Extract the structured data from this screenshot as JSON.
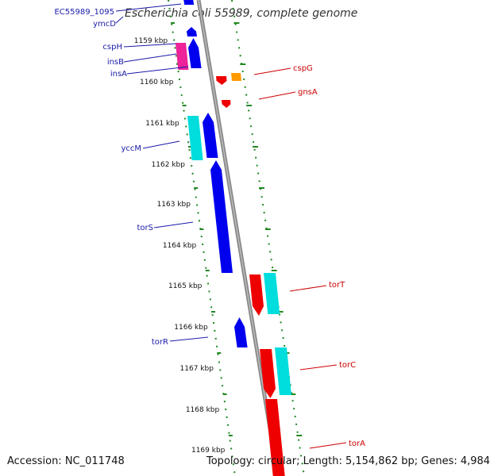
{
  "title": "Escherichia coli 55989, complete genome",
  "footer": {
    "accession": "Accession: NC_011748",
    "topology": "Topology: circular; Length: 5,154,862 bp; Genes: 4,984"
  },
  "colors": {
    "forward_gene": "#0000ee",
    "reverse_gene": "#ee0000",
    "forward_cds_alt": "#00dddd",
    "pink_gene": "#ee2299",
    "orange_gene": "#ff9900",
    "backbone": "#888888",
    "ruler": "#228822",
    "forward_label": "#1a1aaa",
    "reverse_label": "#cc0000"
  },
  "kbp_labels": [
    "1159 kbp",
    "1160 kbp",
    "1161 kbp",
    "1162 kbp",
    "1163 kbp",
    "1164 kbp",
    "1165 kbp",
    "1166 kbp",
    "1167 kbp",
    "1168 kbp",
    "1169 kbp"
  ],
  "forward_labels": [
    "EC55989_1095",
    "ymcD",
    "cspH",
    "insB",
    "insA",
    "yccM",
    "torS",
    "torR"
  ],
  "reverse_labels": [
    "cspG",
    "gnsA",
    "torT",
    "torC",
    "torA"
  ]
}
